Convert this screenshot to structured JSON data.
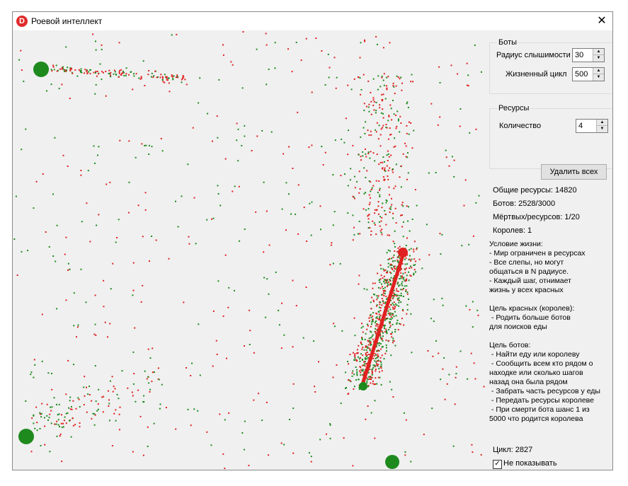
{
  "window": {
    "title": "Роевой интеллект",
    "icon_letter": "D",
    "close_glyph": "✕"
  },
  "colors": {
    "bot": "#1e8a1e",
    "red": "#e02020",
    "bg": "#f0f0f0"
  },
  "bots_group": {
    "title": "Боты",
    "hearing_radius_label": "Радиус слышимости",
    "hearing_radius_value": "30",
    "lifecycle_label": "Жизненный цикл",
    "lifecycle_value": "500"
  },
  "resources_group": {
    "title": "Ресурсы",
    "quantity_label": "Количество",
    "quantity_value": "4"
  },
  "delete_all_label": "Удалить всех",
  "stats": {
    "total_resources": "Общие ресурсы: 14820",
    "bots": "Ботов: 2528/3000",
    "dead_resources": "Мёртвых/ресурсов: 1/20",
    "queens": "Королев: 1"
  },
  "description": "Условие жизни:\n- Мир ограничен в ресурсах\n- Все слепы, но могут\nобщаться в N радиусе.\n- Каждый шаг, отнимает\nжизнь у всех красных\n\nЦель красных (королев):\n - Родить больше ботов\nдля поисков еды\n\nЦель ботов:\n - Найти еду или королеву\n - Сообщить всем кто рядом о\nнаходке или сколько шагов\nназад она была рядом\n - Забрать часть ресурсов у еды\n - Передать ресурсы королеве\n - При смерти бота шанс 1 из\n5000 что родится королева",
  "cycle": "Цикл: 2827",
  "dont_show_label": "Не показывать",
  "dont_show_checked": "✓"
}
